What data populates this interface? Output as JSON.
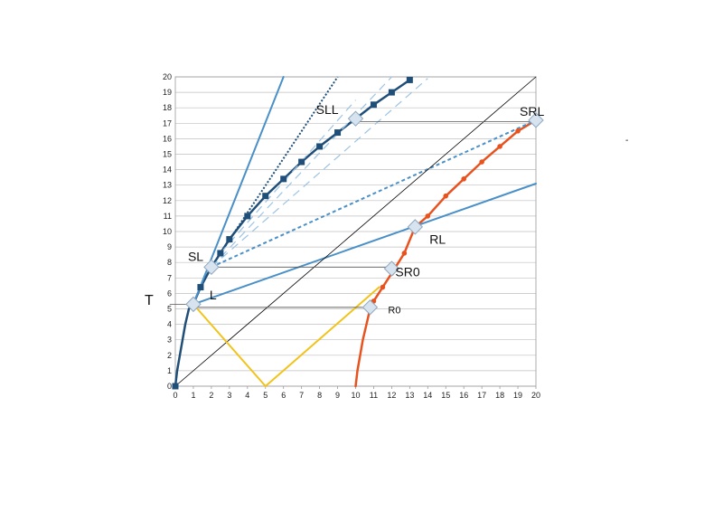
{
  "chart_data": {
    "type": "line",
    "title": "",
    "xlabel": "",
    "ylabel": "T",
    "xlim": [
      0,
      20
    ],
    "ylim": [
      0,
      20
    ],
    "x_ticks": [
      "0",
      "1",
      "2",
      "3",
      "4",
      "5",
      "6",
      "7",
      "8",
      "9",
      "10",
      "11",
      "12",
      "13",
      "14",
      "15",
      "16",
      "17",
      "18",
      "19",
      "20"
    ],
    "y_ticks": [
      "0",
      "1",
      "2",
      "3",
      "4",
      "5",
      "6",
      "7",
      "8",
      "9",
      "10",
      "11",
      "12",
      "13",
      "14",
      "15",
      "16",
      "17",
      "18",
      "19",
      "20"
    ],
    "grid": "horizontal",
    "colors": {
      "navy": "#1f4e79",
      "steel_blue": "#4a90c8",
      "light_blue": "#9cc3e4",
      "red_orange": "#e8521e",
      "gold": "#f2c31a",
      "black": "#000000",
      "gray": "#555555"
    },
    "series": [
      {
        "key": "worldline_left",
        "color": "navy",
        "width": 2.5,
        "marker": "square",
        "points": [
          [
            0,
            0
          ],
          [
            0.1,
            1
          ],
          [
            0.25,
            2
          ],
          [
            0.4,
            3
          ],
          [
            0.55,
            4
          ],
          [
            0.75,
            5
          ],
          [
            1,
            5.3
          ],
          [
            1.4,
            6.4
          ],
          [
            2,
            7.7
          ],
          [
            2.5,
            8.6
          ],
          [
            3,
            9.5
          ],
          [
            4,
            11
          ],
          [
            5,
            12.3
          ],
          [
            6,
            13.4
          ],
          [
            7,
            14.5
          ],
          [
            8,
            15.5
          ],
          [
            9,
            16.4
          ],
          [
            10,
            17.3
          ],
          [
            11,
            18.2
          ],
          [
            12,
            19
          ],
          [
            13,
            19.8
          ]
        ]
      },
      {
        "key": "worldline_right",
        "color": "red_orange",
        "width": 2.5,
        "marker": "dot",
        "points": [
          [
            10,
            0
          ],
          [
            10.1,
            1
          ],
          [
            10.25,
            2
          ],
          [
            10.4,
            3
          ],
          [
            10.6,
            4
          ],
          [
            10.8,
            5
          ],
          [
            11,
            5.5
          ],
          [
            11.5,
            6.4
          ],
          [
            12,
            7.3
          ],
          [
            12.7,
            8.6
          ],
          [
            13.3,
            10.3
          ],
          [
            14,
            11
          ],
          [
            15,
            12.3
          ],
          [
            16,
            13.4
          ],
          [
            17,
            14.5
          ],
          [
            18,
            15.5
          ],
          [
            19,
            16.5
          ],
          [
            20,
            17.2
          ]
        ]
      },
      {
        "key": "line_L_RL",
        "color": "steel_blue",
        "width": 2,
        "points": [
          [
            1,
            5.3
          ],
          [
            20,
            13.1
          ]
        ]
      },
      {
        "key": "line_L_steep",
        "color": "steel_blue",
        "width": 2,
        "points": [
          [
            1,
            5.3
          ],
          [
            6,
            20
          ]
        ]
      },
      {
        "key": "line_SL_SLL",
        "color": "navy",
        "width": 2,
        "dash": "2,2",
        "points": [
          [
            2,
            7.7
          ],
          [
            9,
            20
          ]
        ]
      },
      {
        "key": "line_SL_SRL",
        "color": "steel_blue",
        "width": 2,
        "dash": "4,3",
        "points": [
          [
            2,
            7.7
          ],
          [
            20,
            17.2
          ]
        ]
      },
      {
        "key": "diag_1",
        "color": "light_blue",
        "width": 1.2,
        "dash": "9,6",
        "points": [
          [
            2,
            7.7
          ],
          [
            14,
            19.9
          ]
        ]
      },
      {
        "key": "diag_2",
        "color": "light_blue",
        "width": 1.2,
        "dash": "9,6",
        "points": [
          [
            2,
            7.7
          ],
          [
            12,
            20
          ]
        ]
      },
      {
        "key": "diag_3",
        "color": "light_blue",
        "width": 1.2,
        "dash": "9,6",
        "points": [
          [
            2.5,
            8.6
          ],
          [
            10,
            18.5
          ]
        ]
      },
      {
        "key": "light_line",
        "color": "black",
        "width": 0.8,
        "points": [
          [
            0,
            0
          ],
          [
            20,
            20
          ]
        ]
      },
      {
        "key": "signal_out",
        "color": "gold",
        "width": 2,
        "points": [
          [
            1,
            5.3
          ],
          [
            5,
            0
          ]
        ]
      },
      {
        "key": "signal_back",
        "color": "gold",
        "width": 2,
        "points": [
          [
            5,
            0
          ],
          [
            11.3,
            6.4
          ]
        ]
      },
      {
        "key": "sim_T",
        "color": "gray",
        "width": 0.8,
        "points": [
          [
            -0.3,
            5.3
          ],
          [
            1,
            5.3
          ]
        ]
      },
      {
        "key": "sim_R0",
        "color": "gray",
        "width": 0.8,
        "points": [
          [
            1,
            5.1
          ],
          [
            10.8,
            5.1
          ]
        ]
      },
      {
        "key": "sim_SR0",
        "color": "gray",
        "width": 0.8,
        "points": [
          [
            2,
            7.7
          ],
          [
            12,
            7.7
          ]
        ]
      },
      {
        "key": "sim_SLL_SRL",
        "color": "gray",
        "width": 0.8,
        "points": [
          [
            10,
            17.1
          ],
          [
            20,
            17.1
          ]
        ]
      }
    ],
    "events": [
      {
        "label": "L",
        "x": 1,
        "y": 5.3
      },
      {
        "label": "SL",
        "x": 2,
        "y": 7.7
      },
      {
        "label": "SLL",
        "x": 10,
        "y": 17.3
      },
      {
        "label": "SRL",
        "x": 20,
        "y": 17.2
      },
      {
        "label": "RL",
        "x": 13.3,
        "y": 10.3
      },
      {
        "label": "SR0",
        "x": 12,
        "y": 7.6
      },
      {
        "label": "R0",
        "x": 10.8,
        "y": 5.1
      }
    ],
    "annotations": [
      {
        "text": "SLL",
        "x": 7.8,
        "y": 17.6,
        "size": 14
      },
      {
        "text": "SRL",
        "x": 19.1,
        "y": 17.5,
        "size": 14
      },
      {
        "text": "SL",
        "x": 0.7,
        "y": 8.1,
        "size": 14
      },
      {
        "text": "L",
        "x": 1.9,
        "y": 5.6,
        "size": 14
      },
      {
        "text": "RL",
        "x": 14.1,
        "y": 9.2,
        "size": 14
      },
      {
        "text": "SR0",
        "x": 12.2,
        "y": 7.1,
        "size": 14
      },
      {
        "text": "R0",
        "x": 11.8,
        "y": 4.7,
        "size": 11
      }
    ]
  }
}
